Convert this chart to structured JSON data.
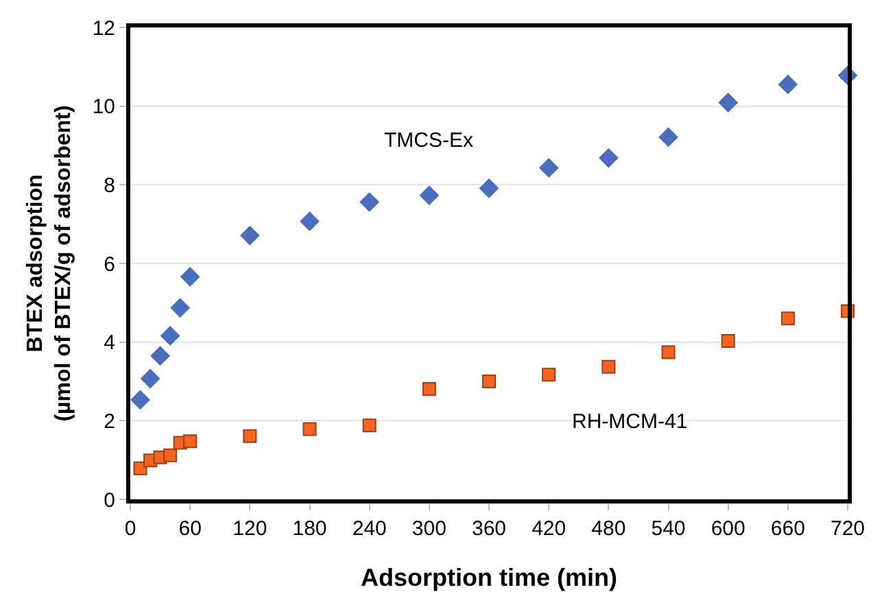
{
  "chart_data": {
    "type": "scatter",
    "xlabel": "Adsorption time (min)",
    "ylabel": "BTEX adsorption\n(µmol of BTEX/g of adsorbent)",
    "x": [
      10,
      20,
      30,
      40,
      50,
      60,
      120,
      180,
      240,
      300,
      360,
      420,
      480,
      540,
      600,
      660,
      720
    ],
    "series": [
      {
        "name": "TMCS-Ex",
        "color": "#4a6ebb",
        "marker": "diamond",
        "values": [
          2.53,
          3.07,
          3.65,
          4.16,
          4.87,
          5.66,
          6.71,
          7.07,
          7.56,
          7.73,
          7.91,
          8.43,
          8.68,
          9.21,
          10.09,
          10.55,
          10.78
        ]
      },
      {
        "name": "RH-MCM-41",
        "color": "#f26522",
        "marker": "square",
        "values": [
          0.79,
          0.99,
          1.07,
          1.12,
          1.44,
          1.48,
          1.61,
          1.79,
          1.88,
          2.81,
          3.0,
          3.17,
          3.37,
          3.74,
          4.03,
          4.6,
          4.79
        ]
      }
    ],
    "xlim": [
      0,
      720
    ],
    "xticks": [
      0,
      60,
      120,
      180,
      240,
      300,
      360,
      420,
      480,
      540,
      600,
      660,
      720
    ],
    "ylim": [
      0,
      12
    ],
    "yticks": [
      0,
      2,
      4,
      6,
      8,
      10,
      12
    ],
    "grid": "y",
    "legend": false
  }
}
